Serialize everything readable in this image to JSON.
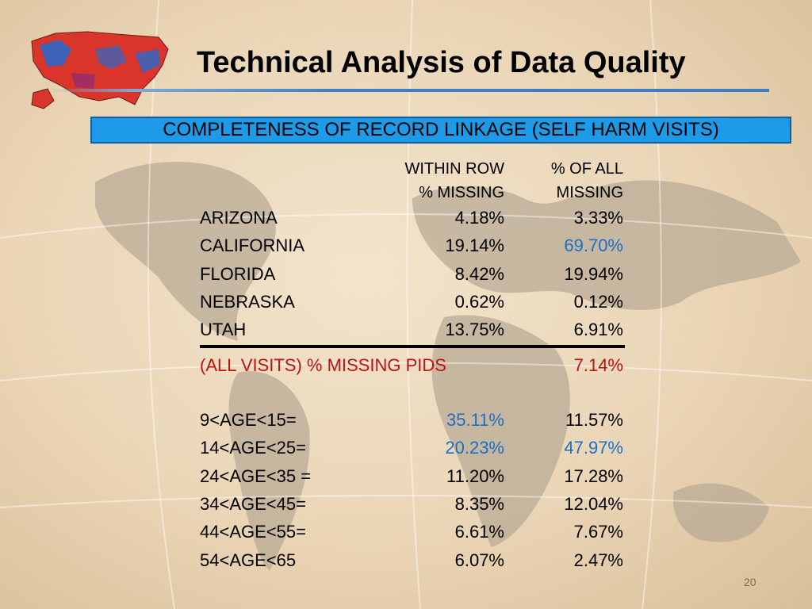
{
  "title": "Technical Analysis of Data Quality",
  "banner": "COMPLETENESS OF RECORD LINKAGE (SELF HARM VISITS)",
  "headers": {
    "col1_line1": "WITHIN ROW",
    "col1_line2": "% MISSING",
    "col2_line1": "% OF ALL",
    "col2_line2": "MISSING"
  },
  "states": [
    {
      "label": "ARIZONA",
      "within": "4.18%",
      "of_all": "3.33%"
    },
    {
      "label": "CALIFORNIA",
      "within": "19.14%",
      "of_all": "69.70%"
    },
    {
      "label": "FLORIDA",
      "within": "8.42%",
      "of_all": "19.94%"
    },
    {
      "label": "NEBRASKA",
      "within": "0.62%",
      "of_all": "0.12%"
    },
    {
      "label": "UTAH",
      "within": "13.75%",
      "of_all": "6.91%"
    }
  ],
  "summary": {
    "label": "(ALL VISITS) % MISSING PIDS",
    "value": "7.14%"
  },
  "ages": [
    {
      "label": "9<AGE<15=",
      "within": "35.11%",
      "of_all": "11.57%"
    },
    {
      "label": "14<AGE<25=",
      "within": "20.23%",
      "of_all": "47.97%"
    },
    {
      "label": "24<AGE<35 =",
      "within": "11.20%",
      "of_all": "17.28%"
    },
    {
      "label": "34<AGE<45=",
      "within": "8.35%",
      "of_all": "12.04%"
    },
    {
      "label": "44<AGE<55=",
      "within": "6.61%",
      "of_all": "7.67%"
    },
    {
      "label": "54<AGE<65",
      "within": "6.07%",
      "of_all": "2.47%"
    }
  ],
  "slide_number": "20",
  "colors": {
    "highlight_blue": "#1a6fc7",
    "summary_red": "#c0100f",
    "banner_blue": "#1e9be8"
  }
}
